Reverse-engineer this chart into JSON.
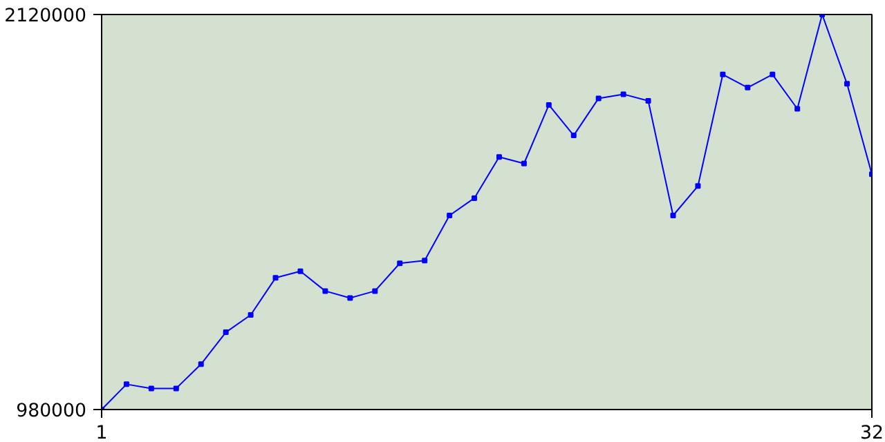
{
  "chart_data": {
    "type": "line",
    "x": [
      1,
      2,
      3,
      4,
      5,
      6,
      7,
      8,
      9,
      10,
      11,
      12,
      13,
      14,
      15,
      16,
      17,
      18,
      19,
      20,
      21,
      22,
      23,
      24,
      25,
      26,
      27,
      28,
      29,
      30,
      31,
      32
    ],
    "series": [
      {
        "color": "#0000ff",
        "values": [
          980000,
          1053000,
          1041000,
          1041000,
          1111000,
          1203000,
          1253000,
          1360000,
          1379000,
          1322000,
          1302000,
          1322000,
          1402000,
          1410000,
          1540000,
          1590000,
          1709000,
          1690000,
          1859000,
          1771000,
          1878000,
          1890000,
          1871000,
          1540000,
          1625000,
          1947000,
          1909000,
          1947000,
          1848000,
          2120000,
          1920000,
          1659000
        ]
      }
    ],
    "xlim": [
      1,
      32
    ],
    "ylim": [
      980000,
      2120000
    ],
    "xticks": [
      1,
      32
    ],
    "yticks": [
      980000,
      2120000
    ],
    "marker": "square",
    "line_style": "solid"
  }
}
